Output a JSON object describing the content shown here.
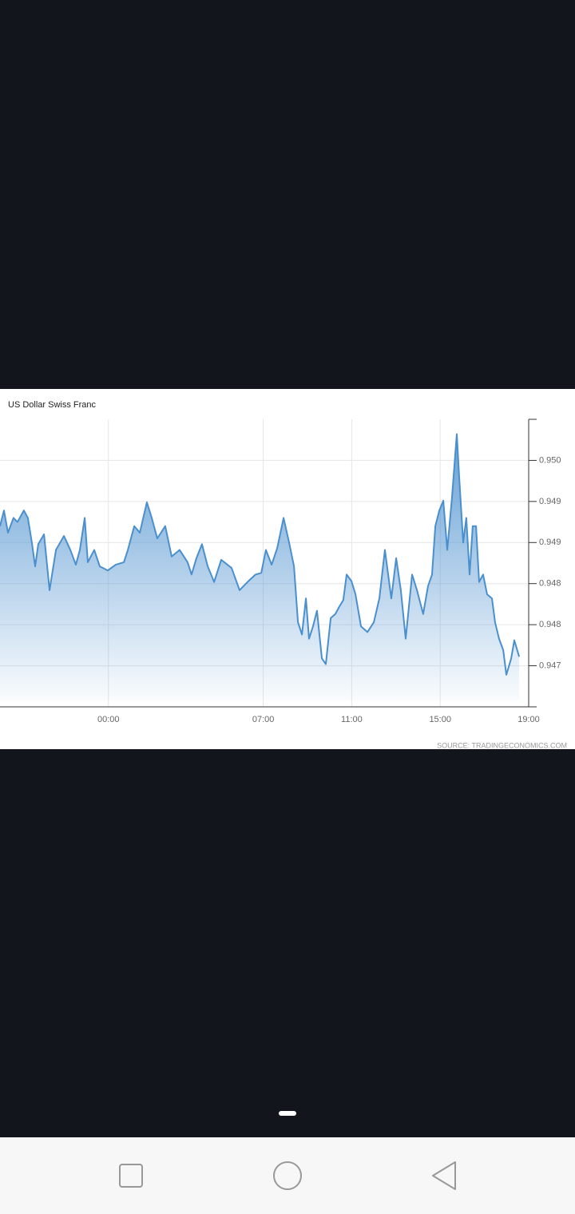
{
  "chart_data": {
    "type": "area",
    "title": "US Dollar Swiss Franc",
    "source": "SOURCE: TRADINGECONOMICS.COM",
    "x": [
      -4.9,
      -4.72,
      -4.54,
      -4.29,
      -4.11,
      -3.82,
      -3.64,
      -3.46,
      -3.31,
      -3.17,
      -2.91,
      -2.66,
      -2.37,
      -2.01,
      -1.72,
      -1.47,
      -1.29,
      -1.07,
      -0.93,
      -0.64,
      -0.39,
      -0.03,
      0.33,
      0.7,
      0.88,
      1.17,
      1.42,
      1.74,
      1.96,
      2.21,
      2.57,
      2.86,
      3.22,
      3.58,
      3.76,
      3.98,
      4.23,
      4.49,
      4.78,
      5.1,
      5.57,
      5.93,
      6.29,
      6.65,
      6.91,
      7.12,
      7.38,
      7.63,
      7.92,
      8.17,
      8.39,
      8.57,
      8.75,
      8.93,
      9.07,
      9.25,
      9.43,
      9.65,
      9.83,
      10.05,
      10.26,
      10.44,
      10.62,
      10.77,
      10.99,
      11.17,
      11.42,
      11.71,
      12.0,
      12.25,
      12.5,
      12.79,
      13.01,
      13.22,
      13.44,
      13.73,
      13.95,
      14.23,
      14.45,
      14.63,
      14.78,
      14.96,
      15.14,
      15.32,
      15.53,
      15.75,
      15.86,
      16.04,
      16.18,
      16.33,
      16.47,
      16.62,
      16.76,
      16.94,
      17.12,
      17.34,
      17.48,
      17.66,
      17.85,
      17.99,
      18.21,
      18.35,
      18.57
    ],
    "values": [
      0.9492,
      0.94939,
      0.94912,
      0.9493,
      0.94925,
      0.94939,
      0.9493,
      0.949,
      0.94871,
      0.94898,
      0.9491,
      0.94842,
      0.94891,
      0.94908,
      0.94891,
      0.94873,
      0.94891,
      0.9493,
      0.94876,
      0.94891,
      0.94871,
      0.94866,
      0.94873,
      0.94876,
      0.94891,
      0.9492,
      0.94912,
      0.94949,
      0.9493,
      0.94905,
      0.9492,
      0.94883,
      0.94891,
      0.94876,
      0.94861,
      0.94881,
      0.94898,
      0.94871,
      0.94852,
      0.94879,
      0.94869,
      0.94842,
      0.94852,
      0.94861,
      0.94863,
      0.94891,
      0.94873,
      0.94893,
      0.9493,
      0.949,
      0.94871,
      0.94803,
      0.94788,
      0.94832,
      0.94783,
      0.94798,
      0.94817,
      0.94759,
      0.94752,
      0.94808,
      0.94813,
      0.94822,
      0.9483,
      0.94861,
      0.94853,
      0.94837,
      0.94798,
      0.94791,
      0.94803,
      0.94832,
      0.94891,
      0.94832,
      0.94881,
      0.94842,
      0.94783,
      0.94861,
      0.94842,
      0.94813,
      0.94847,
      0.94861,
      0.9492,
      0.94939,
      0.94951,
      0.94891,
      0.94954,
      0.95032,
      0.94979,
      0.949,
      0.9493,
      0.94861,
      0.9492,
      0.9492,
      0.94852,
      0.94861,
      0.94837,
      0.94832,
      0.94803,
      0.94783,
      0.94769,
      0.94739,
      0.94759,
      0.94781,
      0.94761
    ],
    "color": "#4a8fce",
    "xlim": [
      -4.9,
      19.0
    ],
    "xticks": [
      {
        "value": 0,
        "label": "00:00"
      },
      {
        "value": 7,
        "label": "07:00"
      },
      {
        "value": 11,
        "label": "11:00"
      },
      {
        "value": 15,
        "label": "15:00"
      },
      {
        "value": 19,
        "label": "19:00"
      }
    ],
    "ylim": [
      0.947,
      0.9505
    ],
    "yticks": [
      {
        "value": 0.95,
        "label": "0.950"
      },
      {
        "value": 0.9495,
        "label": "0.949"
      },
      {
        "value": 0.949,
        "label": "0.949"
      },
      {
        "value": 0.9485,
        "label": "0.948"
      },
      {
        "value": 0.948,
        "label": "0.948"
      },
      {
        "value": 0.9475,
        "label": "0.947"
      }
    ],
    "grid": true
  }
}
